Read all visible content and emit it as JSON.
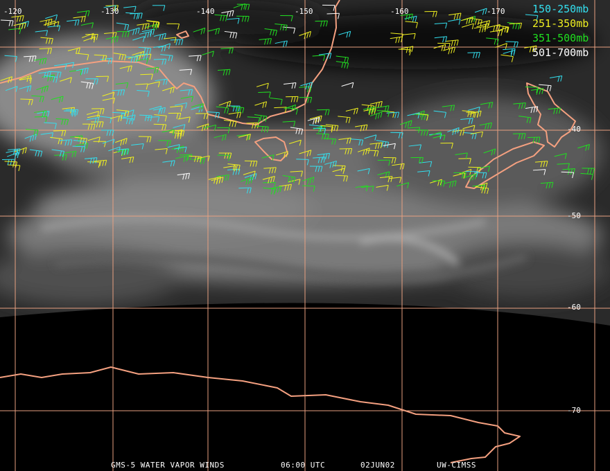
{
  "longitude_labels": [
    "-120",
    "-130",
    "-140",
    "-150",
    "-160",
    "-170"
  ],
  "latitude_labels": [
    "-40",
    "-50",
    "-60",
    "-70"
  ],
  "legend": [
    {
      "label": "150-250mb",
      "color": "#33e0f0"
    },
    {
      "label": "251-350mb",
      "color": "#f0f020"
    },
    {
      "label": "351-500mb",
      "color": "#20e020"
    },
    {
      "label": "501-700mb",
      "color": "#ffffff"
    }
  ],
  "footer": {
    "title": "GMS-5 WATER VAPOR WINDS",
    "time": "06:00 UTC",
    "date": "02JUN02",
    "source": "UW-CIMSS"
  }
}
